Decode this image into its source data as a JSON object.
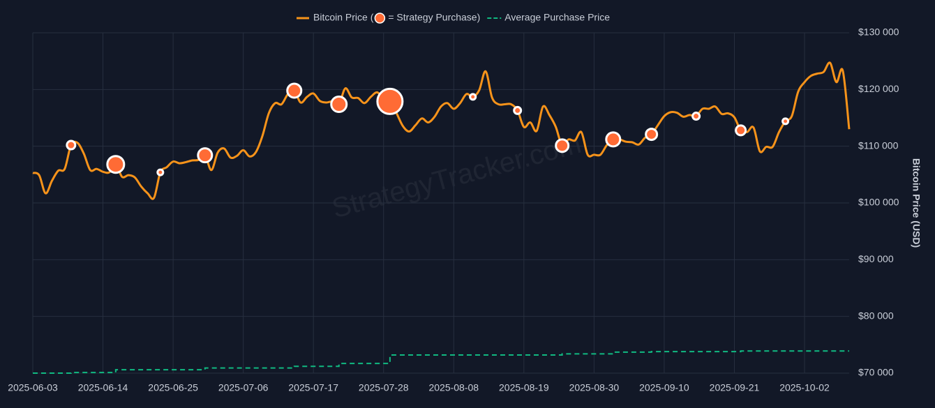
{
  "chart_data": {
    "type": "line",
    "axis_label": "Bitcoin Price (USD)",
    "watermark": "StrategyTracker.com",
    "xlim": [
      "2025-06-03",
      "2025-10-09"
    ],
    "xticks": [
      "2025-06-03",
      "2025-06-14",
      "2025-06-25",
      "2025-07-06",
      "2025-07-17",
      "2025-07-28",
      "2025-08-08",
      "2025-08-19",
      "2025-08-30",
      "2025-09-10",
      "2025-09-21",
      "2025-10-02"
    ],
    "ylim": [
      70000,
      130000
    ],
    "yticks": [
      {
        "value": 70000,
        "label": "$70 000"
      },
      {
        "value": 80000,
        "label": "$80 000"
      },
      {
        "value": 90000,
        "label": "$90 000"
      },
      {
        "value": 100000,
        "label": "$100 000"
      },
      {
        "value": 110000,
        "label": "$110 000"
      },
      {
        "value": 120000,
        "label": "$120 000"
      },
      {
        "value": 130000,
        "label": "$130 000"
      }
    ],
    "grid": true,
    "legend": "top",
    "series": [
      {
        "name": "Bitcoin Price (",
        "type": "line",
        "color": "#f7931a",
        "x": [
          "2025-06-03",
          "2025-06-04",
          "2025-06-05",
          "2025-06-06",
          "2025-06-07",
          "2025-06-08",
          "2025-06-09",
          "2025-06-10",
          "2025-06-11",
          "2025-06-12",
          "2025-06-13",
          "2025-06-14",
          "2025-06-15",
          "2025-06-16",
          "2025-06-17",
          "2025-06-18",
          "2025-06-19",
          "2025-06-20",
          "2025-06-21",
          "2025-06-22",
          "2025-06-23",
          "2025-06-24",
          "2025-06-25",
          "2025-06-26",
          "2025-06-27",
          "2025-06-28",
          "2025-06-29",
          "2025-06-30",
          "2025-07-01",
          "2025-07-02",
          "2025-07-03",
          "2025-07-04",
          "2025-07-05",
          "2025-07-06",
          "2025-07-07",
          "2025-07-08",
          "2025-07-09",
          "2025-07-10",
          "2025-07-11",
          "2025-07-12",
          "2025-07-13",
          "2025-07-14",
          "2025-07-15",
          "2025-07-16",
          "2025-07-17",
          "2025-07-18",
          "2025-07-19",
          "2025-07-20",
          "2025-07-21",
          "2025-07-22",
          "2025-07-23",
          "2025-07-24",
          "2025-07-25",
          "2025-07-26",
          "2025-07-27",
          "2025-07-28",
          "2025-07-29",
          "2025-07-30",
          "2025-07-31",
          "2025-08-01",
          "2025-08-02",
          "2025-08-03",
          "2025-08-04",
          "2025-08-05",
          "2025-08-06",
          "2025-08-07",
          "2025-08-08",
          "2025-08-09",
          "2025-08-10",
          "2025-08-11",
          "2025-08-12",
          "2025-08-13",
          "2025-08-14",
          "2025-08-15",
          "2025-08-16",
          "2025-08-17",
          "2025-08-18",
          "2025-08-19",
          "2025-08-20",
          "2025-08-21",
          "2025-08-22",
          "2025-08-23",
          "2025-08-24",
          "2025-08-25",
          "2025-08-26",
          "2025-08-27",
          "2025-08-28",
          "2025-08-29",
          "2025-08-30",
          "2025-08-31",
          "2025-09-01",
          "2025-09-02",
          "2025-09-03",
          "2025-09-04",
          "2025-09-05",
          "2025-09-06",
          "2025-09-07",
          "2025-09-08",
          "2025-09-09",
          "2025-09-10",
          "2025-09-11",
          "2025-09-12",
          "2025-09-13",
          "2025-09-14",
          "2025-09-15",
          "2025-09-16",
          "2025-09-17",
          "2025-09-18",
          "2025-09-19",
          "2025-09-20",
          "2025-09-21",
          "2025-09-22",
          "2025-09-23",
          "2025-09-24",
          "2025-09-25",
          "2025-09-26",
          "2025-09-27",
          "2025-09-28",
          "2025-09-29",
          "2025-09-30",
          "2025-10-01",
          "2025-10-02",
          "2025-10-03",
          "2025-10-04",
          "2025-10-05",
          "2025-10-06",
          "2025-10-07",
          "2025-10-08",
          "2025-10-09"
        ],
        "values": [
          105300,
          104900,
          101700,
          103900,
          105700,
          106000,
          110200,
          110600,
          108700,
          105800,
          106000,
          105500,
          105400,
          106800,
          104600,
          104900,
          104500,
          102900,
          101700,
          100900,
          105400,
          106300,
          107300,
          107000,
          107200,
          107500,
          107600,
          108400,
          105800,
          108900,
          109600,
          108000,
          108300,
          109300,
          108200,
          109000,
          111800,
          115800,
          117600,
          117400,
          119200,
          119800,
          117700,
          118700,
          119300,
          118000,
          117700,
          117900,
          117400,
          120200,
          118600,
          118500,
          117600,
          118700,
          119500,
          118300,
          117900,
          115900,
          113600,
          112600,
          113700,
          114900,
          114200,
          115200,
          117000,
          117600,
          116600,
          117600,
          119200,
          118700,
          119900,
          123200,
          118600,
          117400,
          117400,
          117400,
          116300,
          113400,
          114200,
          112700,
          117000,
          115500,
          113400,
          110100,
          111200,
          111000,
          112500,
          108500,
          108500,
          108500,
          110200,
          111200,
          111200,
          110800,
          110700,
          110300,
          111500,
          112100,
          113700,
          115300,
          116000,
          115900,
          115200,
          115500,
          115300,
          116600,
          116600,
          117000,
          115700,
          115800,
          115100,
          112800,
          112500,
          113300,
          109100,
          109900,
          109900,
          112500,
          114400,
          115300,
          119600,
          121300,
          122400,
          122800,
          123100,
          124700,
          121300,
          123300,
          113000
        ]
      },
      {
        "name": "= Strategy Purchase)",
        "type": "scatter",
        "color": "#ff6b35",
        "x": [
          "2025-06-09",
          "2025-06-16",
          "2025-06-23",
          "2025-06-30",
          "2025-07-14",
          "2025-07-21",
          "2025-07-29",
          "2025-08-11",
          "2025-08-18",
          "2025-08-25",
          "2025-09-02",
          "2025-09-08",
          "2025-09-15",
          "2025-09-22",
          "2025-09-29"
        ],
        "values": [
          110200,
          106800,
          105400,
          108400,
          119800,
          117400,
          117900,
          118700,
          116300,
          110100,
          111200,
          112100,
          115300,
          112800,
          114400
        ],
        "sizes": [
          36,
          144,
          16,
          100,
          100,
          121,
          324,
          16,
          25,
          81,
          100,
          64,
          25,
          49,
          16
        ]
      },
      {
        "name": "Average Purchase Price",
        "type": "step",
        "color": "#10b981",
        "x": [
          "2025-06-03",
          "2025-06-09",
          "2025-06-16",
          "2025-06-30",
          "2025-07-14",
          "2025-07-21",
          "2025-07-29",
          "2025-08-25",
          "2025-09-02",
          "2025-09-08",
          "2025-09-22",
          "2025-10-09"
        ],
        "values": [
          70000,
          70100,
          70600,
          70900,
          71200,
          71700,
          73200,
          73400,
          73700,
          73800,
          73900,
          73900
        ]
      }
    ]
  }
}
